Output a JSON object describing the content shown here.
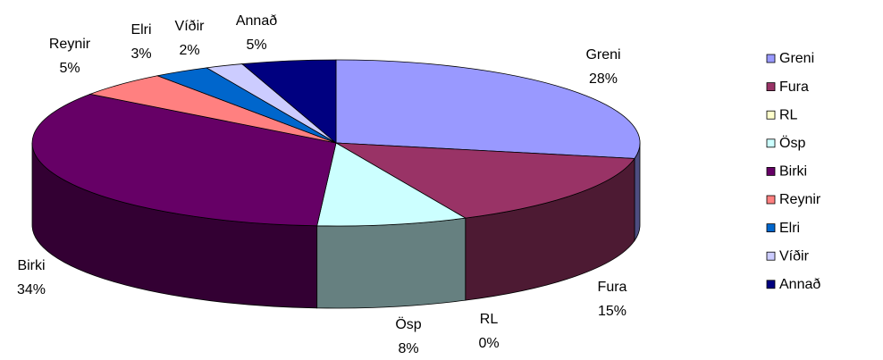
{
  "chart_data": {
    "type": "pie",
    "categories": [
      "Greni",
      "Fura",
      "RL",
      "Ösp",
      "Birki",
      "Reynir",
      "Elri",
      "Víðir",
      "Annað"
    ],
    "values": [
      28,
      15,
      0,
      8,
      34,
      5,
      3,
      2,
      5
    ],
    "value_labels": [
      "28%",
      "15%",
      "0%",
      "8%",
      "34%",
      "5%",
      "3%",
      "2%",
      "5%"
    ],
    "colors": [
      "#9999ff",
      "#993366",
      "#ffffcc",
      "#ccffff",
      "#660066",
      "#ff8080",
      "#0066cc",
      "#ccccff",
      "#000080"
    ],
    "legend": "right"
  }
}
